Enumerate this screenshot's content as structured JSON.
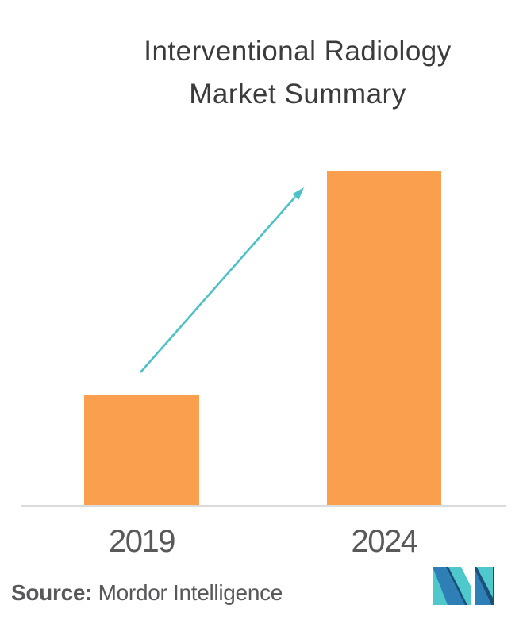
{
  "title": {
    "line1": "Interventional Radiology",
    "line2": "Market Summary"
  },
  "chart_data": {
    "type": "bar",
    "title": "Interventional Radiology Market Summary",
    "categories": [
      "2019",
      "2024"
    ],
    "values": [
      1,
      3
    ],
    "value_note": "No y-axis or data labels shown; bar heights are relative, 2024 is ~3x 2019",
    "xlabel": "",
    "ylabel": "",
    "grid": false,
    "legend": false,
    "bar_color": "#FA9F4D",
    "axis_line_color": "#DBDBDB",
    "annotation": {
      "type": "growth-arrow",
      "description": "diagonal arrow from top of 2019 bar toward top of 2024 bar",
      "color": "#4EC1C8"
    }
  },
  "footer": {
    "source_label": "Source:",
    "source_name": " Mordor Intelligence"
  },
  "logo": {
    "name": "mordor-intelligence-logo",
    "colors": {
      "teal": "#4FC8CC",
      "blue": "#2E7FB5",
      "navy": "#1B4F78"
    }
  },
  "colors": {
    "background": "#FFFFFF",
    "title_text": "#3B3B3D",
    "label_text": "#595959",
    "source_text": "#58585A"
  }
}
